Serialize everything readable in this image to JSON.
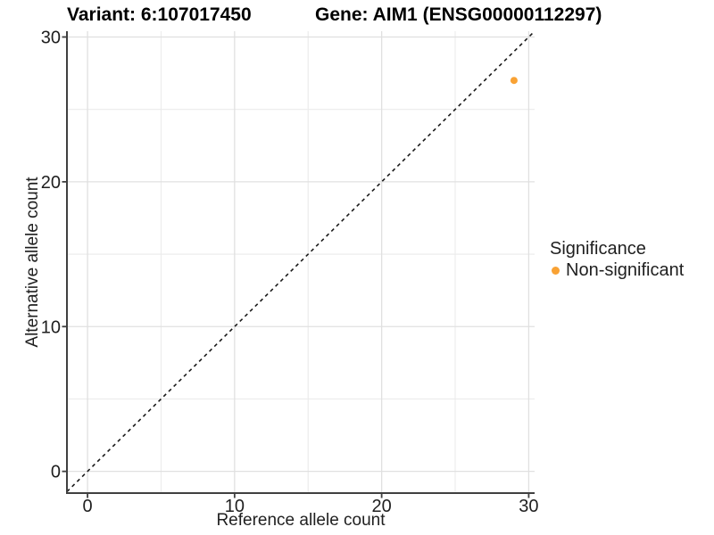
{
  "figure": {
    "title_left": "Variant: 6:107017450",
    "title_right": "Gene: AIM1 (ENSG00000112297)",
    "x_axis_label": "Reference allele count",
    "y_axis_label": "Alternative allele count"
  },
  "legend": {
    "title": "Significance",
    "items": [
      {
        "label": "Non-significant",
        "color": "#F9A234"
      }
    ]
  },
  "chart_data": {
    "type": "scatter",
    "title": "Variant: 6:107017450    Gene: AIM1 (ENSG00000112297)",
    "xlabel": "Reference allele count",
    "ylabel": "Alternative allele count",
    "xlim": [
      -1.4,
      30.4
    ],
    "ylim": [
      -1.5,
      30.4
    ],
    "x_ticks": [
      0,
      10,
      20,
      30
    ],
    "y_ticks": [
      0,
      10,
      20,
      30
    ],
    "x_minor_ticks": [
      5,
      15,
      25
    ],
    "y_minor_ticks": [
      5,
      15,
      25
    ],
    "grid": true,
    "legend_position": "right",
    "reference_line": {
      "type": "identity",
      "slope": 1,
      "intercept": 0,
      "style": "dashed",
      "color": "#1a1a1a"
    },
    "series": [
      {
        "name": "Non-significant",
        "color": "#F9A234",
        "points": [
          {
            "x": 29,
            "y": 27
          }
        ]
      }
    ],
    "colors": {
      "major_grid": "#e0e0e0",
      "minor_grid": "#ebebeb",
      "axis_line": "#404040",
      "tick_label": "#1f1f1f"
    }
  }
}
